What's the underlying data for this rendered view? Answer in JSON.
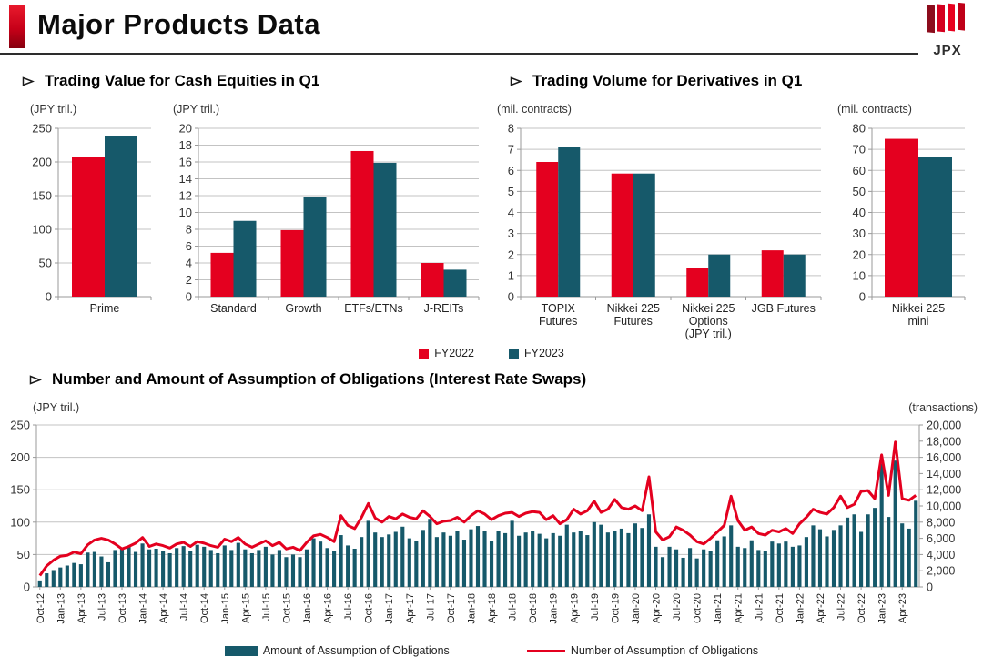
{
  "header": {
    "title": "Major Products Data",
    "logo_text": "JPX"
  },
  "sections": {
    "cash_equities": {
      "title": "Trading Value for Cash Equities in Q1"
    },
    "derivatives": {
      "title": "Trading Volume for Derivatives in Q1"
    },
    "swaps": {
      "title": "Number and Amount of Assumption of Obligations (Interest Rate Swaps)"
    }
  },
  "icons": {
    "bullet": "right-arrowhead",
    "logo": "four-red-slanted-stripes"
  },
  "colors": {
    "fy2022_red": "#e4001f",
    "fy2023_teal": "#16596a",
    "line_red": "#e4001f",
    "bar_teal": "#16596a",
    "grid": "#c3c3c3",
    "axis": "#9a9a9a",
    "accent_red": "#c60018"
  },
  "chart_data": [
    {
      "id": "cash-prime",
      "type": "bar",
      "unit": "(JPY tril.)",
      "categories": [
        [
          "Prime"
        ]
      ],
      "series": [
        {
          "name": "FY2022",
          "values": [
            207
          ]
        },
        {
          "name": "FY2023",
          "values": [
            238
          ]
        }
      ],
      "ylim": [
        0,
        250
      ],
      "ytick": 50,
      "grid": true,
      "legend_position": "bottom-center-shared"
    },
    {
      "id": "cash-other",
      "type": "bar",
      "unit": "(JPY tril.)",
      "categories": [
        [
          "Standard"
        ],
        [
          "Growth"
        ],
        [
          "ETFs/ETNs"
        ],
        [
          "J-REITs"
        ]
      ],
      "series": [
        {
          "name": "FY2022",
          "values": [
            5.2,
            7.9,
            17.3,
            4.0
          ]
        },
        {
          "name": "FY2023",
          "values": [
            9.0,
            11.8,
            15.9,
            3.2
          ]
        }
      ],
      "ylim": [
        0,
        20
      ],
      "ytick": 2,
      "grid": true
    },
    {
      "id": "derivatives",
      "type": "bar",
      "unit": "(mil. contracts)",
      "categories": [
        [
          "TOPIX",
          "Futures"
        ],
        [
          "Nikkei 225",
          "Futures"
        ],
        [
          "Nikkei 225",
          "Options",
          "(JPY tril.)"
        ],
        [
          "JGB Futures"
        ]
      ],
      "series": [
        {
          "name": "FY2022",
          "values": [
            6.4,
            5.85,
            1.35,
            2.2
          ]
        },
        {
          "name": "FY2023",
          "values": [
            7.1,
            5.85,
            2.0,
            2.0
          ]
        }
      ],
      "ylim": [
        0,
        8
      ],
      "ytick": 1,
      "grid": true
    },
    {
      "id": "nikkei-mini",
      "type": "bar",
      "unit": "(mil. contracts)",
      "categories": [
        [
          "Nikkei 225",
          "mini"
        ]
      ],
      "series": [
        {
          "name": "FY2022",
          "values": [
            75
          ]
        },
        {
          "name": "FY2023",
          "values": [
            66.5
          ]
        }
      ],
      "ylim": [
        0,
        80
      ],
      "ytick": 10,
      "grid": true
    },
    {
      "id": "swaps",
      "type": "bar+line",
      "left_unit": "(JPY tril.)",
      "right_unit": "(transactions)",
      "left_ylim": [
        0,
        250
      ],
      "left_ytick": 50,
      "right_ylim": [
        0,
        20000
      ],
      "right_ytick": 2000,
      "x_start": "Oct-12",
      "x_end": "Jun-23",
      "label_every": 3,
      "x_labels": [
        "Oct-12",
        "Jan-13",
        "Apr-13",
        "Jul-13",
        "Oct-13",
        "Jan-14",
        "Apr-14",
        "Jul-14",
        "Oct-14",
        "Jan-15",
        "Apr-15",
        "Jul-15",
        "Oct-15",
        "Jan-16",
        "Apr-16",
        "Jul-16",
        "Oct-16",
        "Jan-17",
        "Apr-17",
        "Jul-17",
        "Oct-17",
        "Jan-18",
        "Apr-18",
        "Jul-18",
        "Oct-18",
        "Jan-19",
        "Apr-19",
        "Jul-19",
        "Oct-19",
        "Jan-20",
        "Apr-20",
        "Jul-20",
        "Oct-20",
        "Jan-21",
        "Apr-21",
        "Jul-21",
        "Oct-21",
        "Jan-22",
        "Apr-22",
        "Jul-22",
        "Oct-22",
        "Jan-23",
        "Apr-23"
      ],
      "bar_series": {
        "name": "Amount of Assumption of Obligations",
        "axis": "left",
        "values": [
          10,
          21,
          26,
          30,
          33,
          37,
          35,
          53,
          54,
          47,
          38,
          57,
          61,
          63,
          54,
          67,
          58,
          59,
          56,
          52,
          60,
          63,
          55,
          65,
          62,
          57,
          52,
          64,
          57,
          68,
          58,
          52,
          57,
          62,
          50,
          57,
          46,
          50,
          46,
          58,
          75,
          70,
          60,
          56,
          80,
          64,
          59,
          77,
          102,
          84,
          77,
          81,
          85,
          93,
          75,
          71,
          88,
          105,
          77,
          84,
          79,
          87,
          73,
          89,
          94,
          86,
          71,
          87,
          83,
          102,
          79,
          84,
          87,
          82,
          75,
          83,
          79,
          96,
          84,
          87,
          80,
          100,
          96,
          84,
          87,
          90,
          83,
          98,
          91,
          112,
          62,
          46,
          62,
          58,
          45,
          60,
          44,
          58,
          55,
          72,
          78,
          95,
          62,
          60,
          72,
          57,
          55,
          70,
          67,
          70,
          62,
          64,
          77,
          95,
          89,
          78,
          88,
          95,
          107,
          112,
          85,
          112,
          122,
          190,
          108,
          195,
          98,
          90,
          133
        ]
      },
      "line_series": {
        "name": "Number of Assumption of Obligations",
        "axis": "right",
        "values": [
          1400,
          2600,
          3300,
          3800,
          3900,
          4300,
          4100,
          5200,
          5800,
          6000,
          5800,
          5300,
          4700,
          5000,
          5400,
          6100,
          5000,
          5300,
          5100,
          4800,
          5300,
          5500,
          5000,
          5600,
          5400,
          5100,
          4900,
          5900,
          5600,
          6100,
          5300,
          4900,
          5300,
          5700,
          5100,
          5500,
          4700,
          4900,
          4500,
          5500,
          6300,
          6500,
          6100,
          5600,
          8800,
          7600,
          7200,
          8600,
          10300,
          8500,
          8000,
          8700,
          8400,
          9000,
          8600,
          8400,
          9400,
          8700,
          7800,
          8100,
          8200,
          8600,
          8000,
          8800,
          9400,
          9000,
          8300,
          8800,
          9100,
          9200,
          8700,
          9100,
          9300,
          9200,
          8300,
          8800,
          7800,
          8300,
          9600,
          9000,
          9400,
          10600,
          9200,
          9600,
          10800,
          9800,
          9600,
          10000,
          9400,
          13600,
          6800,
          5800,
          6200,
          7400,
          7000,
          6400,
          5600,
          5300,
          6000,
          6800,
          7600,
          11200,
          8200,
          7000,
          7400,
          6600,
          6400,
          7000,
          6800,
          7200,
          6600,
          7800,
          8600,
          9600,
          9200,
          9000,
          9800,
          11200,
          9800,
          10200,
          11800,
          11900,
          10900,
          16300,
          11300,
          17900,
          10900,
          10700,
          11300
        ]
      }
    }
  ]
}
